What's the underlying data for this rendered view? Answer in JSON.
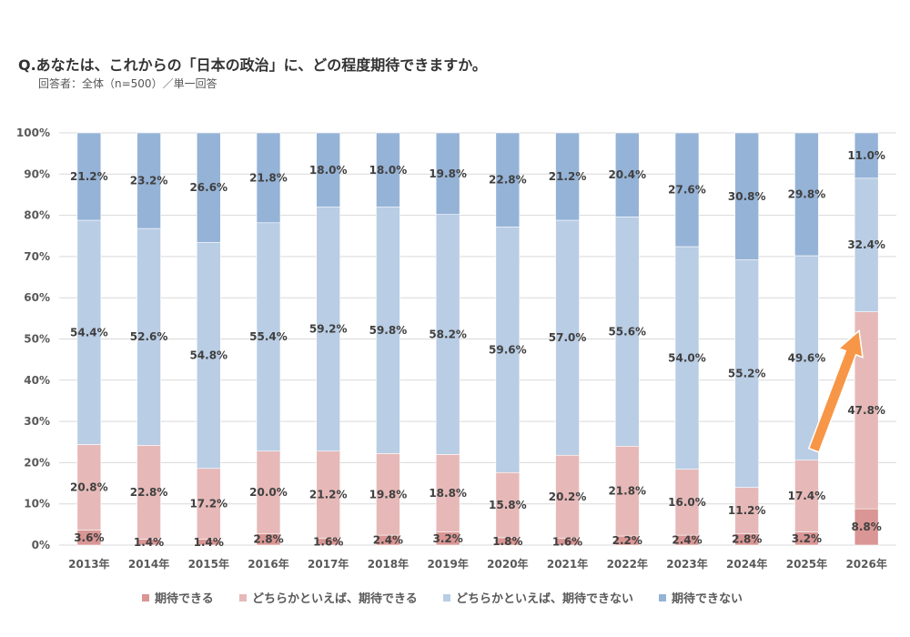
{
  "title": "Q.あなたは、これからの「日本の政治」に、どの程度期待できますか。",
  "subtitle": "回答者：全体（n=500）／単一回答",
  "colors": {
    "expect": "#d99694",
    "somewhat_expect": "#e6b9b8",
    "somewhat_not_expect": "#b9cde5",
    "not_expect": "#95b3d7",
    "arrow": "#f79646",
    "grid": "#d9d9d9",
    "axis_text": "#595959",
    "label_text": "#404040"
  },
  "chart_data": {
    "type": "bar",
    "stacked": true,
    "percent": true,
    "categories": [
      "2013年",
      "2014年",
      "2015年",
      "2016年",
      "2017年",
      "2018年",
      "2019年",
      "2020年",
      "2021年",
      "2022年",
      "2023年",
      "2024年",
      "2025年",
      "2026年"
    ],
    "series": [
      {
        "name": "期待できる",
        "color": "#d99694",
        "values": [
          3.6,
          1.4,
          1.4,
          2.8,
          1.6,
          2.4,
          3.2,
          1.8,
          1.6,
          2.2,
          2.4,
          2.8,
          3.2,
          8.8
        ]
      },
      {
        "name": "どちらかといえば、期待できる",
        "color": "#e6b9b8",
        "values": [
          20.8,
          22.8,
          17.2,
          20.0,
          21.2,
          19.8,
          18.8,
          15.8,
          20.2,
          21.8,
          16.0,
          11.2,
          17.4,
          47.8
        ]
      },
      {
        "name": "どちらかといえば、期待できない",
        "color": "#b9cde5",
        "values": [
          54.4,
          52.6,
          54.8,
          55.4,
          59.2,
          59.8,
          58.2,
          59.6,
          57.0,
          55.6,
          54.0,
          55.2,
          49.6,
          32.4
        ]
      },
      {
        "name": "期待できない",
        "color": "#95b3d7",
        "values": [
          21.2,
          23.2,
          26.6,
          21.8,
          18.0,
          18.0,
          19.8,
          22.8,
          21.2,
          20.4,
          27.6,
          30.8,
          29.8,
          11.0
        ]
      }
    ],
    "ylim": [
      0,
      100
    ],
    "yticks": [
      "0%",
      "10%",
      "20%",
      "30%",
      "40%",
      "50%",
      "60%",
      "70%",
      "80%",
      "90%",
      "100%"
    ],
    "grid": true,
    "legend": "bottom",
    "annotation": "arrow from 2025 to 2026 indicating increase in 期待"
  }
}
